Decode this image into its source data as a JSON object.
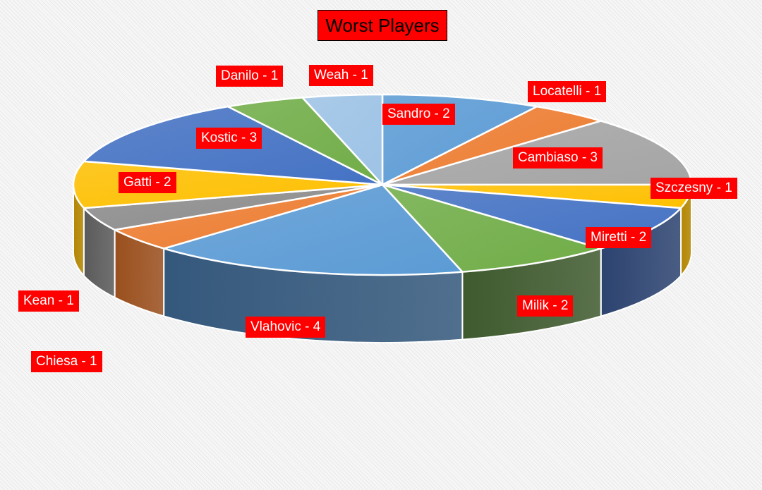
{
  "chart_data": {
    "type": "pie",
    "title": "Worst Players",
    "slices": [
      {
        "label": "Sandro - 2",
        "name": "Sandro",
        "value": 2,
        "color": "#5b9bd5",
        "dark": "#3b6ea3"
      },
      {
        "label": "Locatelli - 1",
        "name": "Locatelli",
        "value": 1,
        "color": "#ed7d31",
        "dark": "#a6531b"
      },
      {
        "label": "Cambiaso - 3",
        "name": "Cambiaso",
        "value": 3,
        "color": "#a5a5a5",
        "dark": "#6e6e6e"
      },
      {
        "label": "Szczesny - 1",
        "name": "Szczesny",
        "value": 1,
        "color": "#ffc000",
        "dark": "#b38600"
      },
      {
        "label": "Miretti - 2",
        "name": "Miretti",
        "value": 2,
        "color": "#4472c4",
        "dark": "#2c4370"
      },
      {
        "label": "Milik - 2",
        "name": "Milik",
        "value": 2,
        "color": "#70ad47",
        "dark": "#3f5a2e"
      },
      {
        "label": "Vlahovic - 4",
        "name": "Vlahovic",
        "value": 4,
        "color": "#5b9bd5",
        "dark": "#34587c"
      },
      {
        "label": "Chiesa - 1",
        "name": "Chiesa",
        "value": 1,
        "color": "#ed7d31",
        "dark": "#9a4f1d"
      },
      {
        "label": "Kean - 1",
        "name": "Kean",
        "value": 1,
        "color": "#8c8c8c",
        "dark": "#5a5a5a"
      },
      {
        "label": "Gatti - 2",
        "name": "Gatti",
        "value": 2,
        "color": "#ffc000",
        "dark": "#b38600"
      },
      {
        "label": "Kostic - 3",
        "name": "Kostic",
        "value": 3,
        "color": "#4472c4",
        "dark": "#2c4370"
      },
      {
        "label": "Danilo - 1",
        "name": "Danilo",
        "value": 1,
        "color": "#70ad47",
        "dark": "#3f5a2e"
      },
      {
        "label": "Weah - 1",
        "name": "Weah",
        "value": 1,
        "color": "#9dc3e6",
        "dark": "#6b8fb0"
      }
    ],
    "label_style": {
      "background": "#ff0000",
      "text_color": "#ffffff"
    },
    "title_style": {
      "background": "#ff0000",
      "text_color": "#000000"
    },
    "legend": "none",
    "grid": false
  }
}
